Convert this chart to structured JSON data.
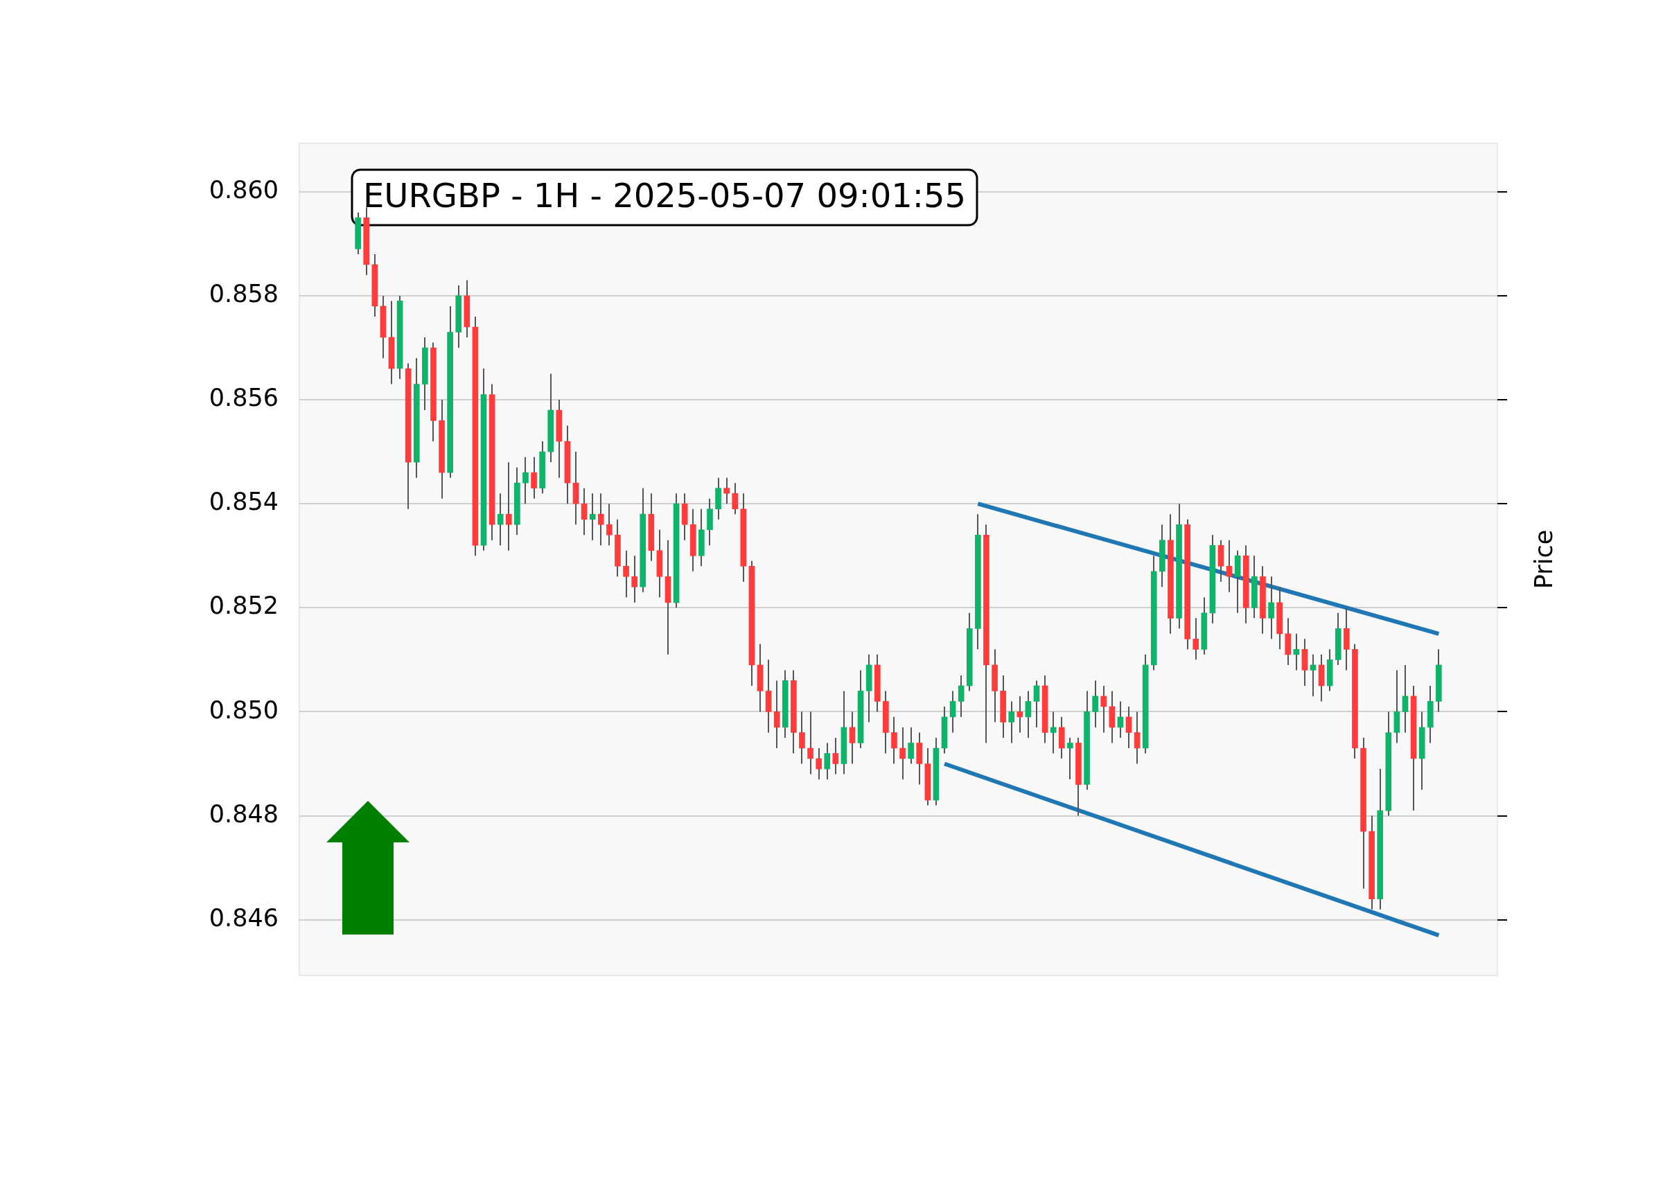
{
  "chart_data": {
    "type": "candlestick",
    "title": "EURGBP - 1H - 2025-05-07 09:01:55",
    "ylabel": "Price",
    "categories": [
      null,
      null,
      null,
      null,
      null,
      null,
      null,
      null,
      null,
      null,
      null,
      null,
      null,
      null,
      null,
      null,
      null,
      null,
      null,
      null,
      null,
      null,
      null,
      null,
      null,
      null,
      null,
      null,
      null,
      null,
      null,
      null,
      null,
      null,
      null,
      null,
      null,
      null,
      null,
      null,
      null,
      null,
      null,
      null,
      null,
      null,
      null,
      null,
      null,
      null,
      null,
      null,
      null,
      null,
      null,
      null,
      null,
      null,
      null,
      null,
      null,
      null,
      null,
      null,
      null,
      null,
      null,
      null,
      null,
      null,
      null,
      null,
      null,
      null,
      null,
      null,
      null,
      null,
      null,
      null,
      null,
      null,
      null,
      null,
      null,
      null,
      null,
      null,
      null,
      null,
      null,
      null,
      null,
      null,
      null,
      null,
      null,
      null,
      null,
      null,
      null,
      null,
      null,
      null,
      null,
      null,
      null,
      null,
      null,
      null,
      null,
      null,
      null,
      null,
      null,
      null,
      null,
      null,
      null,
      null,
      null,
      null,
      null,
      null,
      null,
      null,
      null,
      null,
      null,
      null
    ],
    "ohlc": [
      [
        0.8589,
        0.8596,
        0.8588,
        0.8595
      ],
      [
        0.8595,
        0.8597,
        0.8584,
        0.8586
      ],
      [
        0.8586,
        0.8588,
        0.8576,
        0.8578
      ],
      [
        0.8578,
        0.858,
        0.8568,
        0.8572
      ],
      [
        0.8572,
        0.8579,
        0.8563,
        0.8566
      ],
      [
        0.8566,
        0.858,
        0.8564,
        0.8579
      ],
      [
        0.8566,
        0.8567,
        0.8539,
        0.8548
      ],
      [
        0.8548,
        0.8568,
        0.8545,
        0.8563
      ],
      [
        0.8563,
        0.8572,
        0.8558,
        0.857
      ],
      [
        0.857,
        0.8571,
        0.8552,
        0.8556
      ],
      [
        0.8556,
        0.856,
        0.8541,
        0.8546
      ],
      [
        0.8546,
        0.8578,
        0.8545,
        0.8573
      ],
      [
        0.8573,
        0.8582,
        0.857,
        0.858
      ],
      [
        0.858,
        0.8583,
        0.8572,
        0.8574
      ],
      [
        0.8574,
        0.8576,
        0.853,
        0.8532
      ],
      [
        0.8532,
        0.8566,
        0.8531,
        0.8561
      ],
      [
        0.8561,
        0.8563,
        0.8533,
        0.8536
      ],
      [
        0.8536,
        0.8542,
        0.8532,
        0.8538
      ],
      [
        0.8538,
        0.8548,
        0.8531,
        0.8536
      ],
      [
        0.8536,
        0.8547,
        0.8534,
        0.8544
      ],
      [
        0.8544,
        0.8549,
        0.854,
        0.8546
      ],
      [
        0.8546,
        0.8549,
        0.8541,
        0.8543
      ],
      [
        0.8543,
        0.8552,
        0.8542,
        0.855
      ],
      [
        0.855,
        0.8565,
        0.8548,
        0.8558
      ],
      [
        0.8558,
        0.856,
        0.8545,
        0.8552
      ],
      [
        0.8552,
        0.8555,
        0.854,
        0.8544
      ],
      [
        0.8544,
        0.855,
        0.8536,
        0.854
      ],
      [
        0.854,
        0.8543,
        0.8534,
        0.8537
      ],
      [
        0.8537,
        0.8542,
        0.8533,
        0.8538
      ],
      [
        0.8538,
        0.8542,
        0.8532,
        0.8536
      ],
      [
        0.8536,
        0.854,
        0.8532,
        0.8534
      ],
      [
        0.8534,
        0.8537,
        0.8526,
        0.8528
      ],
      [
        0.8528,
        0.8531,
        0.8522,
        0.8526
      ],
      [
        0.8526,
        0.853,
        0.8521,
        0.8524
      ],
      [
        0.8524,
        0.8543,
        0.8523,
        0.8538
      ],
      [
        0.8538,
        0.8542,
        0.8529,
        0.8531
      ],
      [
        0.8531,
        0.8535,
        0.8522,
        0.8526
      ],
      [
        0.8526,
        0.8533,
        0.8511,
        0.8521
      ],
      [
        0.8521,
        0.8542,
        0.852,
        0.854
      ],
      [
        0.854,
        0.8542,
        0.8533,
        0.8536
      ],
      [
        0.8536,
        0.8539,
        0.8527,
        0.853
      ],
      [
        0.853,
        0.8539,
        0.8528,
        0.8535
      ],
      [
        0.8535,
        0.8541,
        0.8532,
        0.8539
      ],
      [
        0.8539,
        0.8545,
        0.8537,
        0.8543
      ],
      [
        0.8543,
        0.8545,
        0.854,
        0.8542
      ],
      [
        0.8542,
        0.8544,
        0.8538,
        0.8539
      ],
      [
        0.8539,
        0.8542,
        0.8525,
        0.8528
      ],
      [
        0.8528,
        0.8529,
        0.8505,
        0.8509
      ],
      [
        0.8509,
        0.8513,
        0.85,
        0.8504
      ],
      [
        0.8504,
        0.851,
        0.8496,
        0.85
      ],
      [
        0.85,
        0.8506,
        0.8493,
        0.8497
      ],
      [
        0.8497,
        0.8508,
        0.8495,
        0.8506
      ],
      [
        0.8506,
        0.8508,
        0.8492,
        0.8496
      ],
      [
        0.8496,
        0.85,
        0.849,
        0.8493
      ],
      [
        0.8493,
        0.85,
        0.8488,
        0.8491
      ],
      [
        0.8491,
        0.8493,
        0.8487,
        0.8489
      ],
      [
        0.8489,
        0.8494,
        0.8487,
        0.8492
      ],
      [
        0.8492,
        0.8495,
        0.8488,
        0.849
      ],
      [
        0.849,
        0.8504,
        0.8488,
        0.8497
      ],
      [
        0.8497,
        0.85,
        0.849,
        0.8494
      ],
      [
        0.8494,
        0.8508,
        0.8493,
        0.8504
      ],
      [
        0.8504,
        0.8511,
        0.8498,
        0.8509
      ],
      [
        0.8509,
        0.8511,
        0.85,
        0.8502
      ],
      [
        0.8502,
        0.8504,
        0.8492,
        0.8496
      ],
      [
        0.8496,
        0.8499,
        0.849,
        0.8493
      ],
      [
        0.8493,
        0.8497,
        0.8487,
        0.8491
      ],
      [
        0.8491,
        0.8497,
        0.849,
        0.8494
      ],
      [
        0.8494,
        0.8496,
        0.8486,
        0.849
      ],
      [
        0.849,
        0.8493,
        0.8482,
        0.8483
      ],
      [
        0.8483,
        0.8495,
        0.8482,
        0.8493
      ],
      [
        0.8493,
        0.8501,
        0.8492,
        0.8499
      ],
      [
        0.8499,
        0.8504,
        0.8496,
        0.8502
      ],
      [
        0.8502,
        0.8507,
        0.8499,
        0.8505
      ],
      [
        0.8505,
        0.8519,
        0.8504,
        0.8516
      ],
      [
        0.8516,
        0.8538,
        0.8512,
        0.8534
      ],
      [
        0.8534,
        0.8536,
        0.8494,
        0.8509
      ],
      [
        0.8509,
        0.8512,
        0.8498,
        0.8504
      ],
      [
        0.8504,
        0.8507,
        0.8495,
        0.8498
      ],
      [
        0.8498,
        0.8502,
        0.8494,
        0.85
      ],
      [
        0.85,
        0.8503,
        0.8496,
        0.8499
      ],
      [
        0.8499,
        0.8504,
        0.8495,
        0.8502
      ],
      [
        0.8502,
        0.8506,
        0.8497,
        0.8505
      ],
      [
        0.8505,
        0.8507,
        0.8494,
        0.8496
      ],
      [
        0.8496,
        0.85,
        0.8492,
        0.8497
      ],
      [
        0.8497,
        0.8499,
        0.8491,
        0.8493
      ],
      [
        0.8493,
        0.8495,
        0.8487,
        0.8494
      ],
      [
        0.8494,
        0.8495,
        0.848,
        0.8486
      ],
      [
        0.8486,
        0.8504,
        0.8485,
        0.85
      ],
      [
        0.85,
        0.8506,
        0.8497,
        0.8503
      ],
      [
        0.8503,
        0.8505,
        0.8496,
        0.8501
      ],
      [
        0.8501,
        0.8504,
        0.8494,
        0.8497
      ],
      [
        0.8497,
        0.8502,
        0.8495,
        0.8499
      ],
      [
        0.8499,
        0.8501,
        0.8493,
        0.8496
      ],
      [
        0.8496,
        0.85,
        0.849,
        0.8493
      ],
      [
        0.8493,
        0.8511,
        0.8492,
        0.8509
      ],
      [
        0.8509,
        0.853,
        0.8508,
        0.8527
      ],
      [
        0.8527,
        0.8536,
        0.8524,
        0.8533
      ],
      [
        0.8533,
        0.8538,
        0.8515,
        0.8518
      ],
      [
        0.8518,
        0.854,
        0.8516,
        0.8536
      ],
      [
        0.8536,
        0.8537,
        0.8512,
        0.8514
      ],
      [
        0.8514,
        0.8518,
        0.851,
        0.8512
      ],
      [
        0.8512,
        0.8522,
        0.8511,
        0.8519
      ],
      [
        0.8519,
        0.8534,
        0.8517,
        0.8532
      ],
      [
        0.8532,
        0.8533,
        0.8525,
        0.8528
      ],
      [
        0.8528,
        0.8533,
        0.8523,
        0.8526
      ],
      [
        0.8526,
        0.8531,
        0.8519,
        0.853
      ],
      [
        0.853,
        0.8532,
        0.8517,
        0.852
      ],
      [
        0.852,
        0.853,
        0.8518,
        0.8526
      ],
      [
        0.8526,
        0.8528,
        0.8515,
        0.8518
      ],
      [
        0.8518,
        0.8526,
        0.8514,
        0.8521
      ],
      [
        0.8521,
        0.8524,
        0.8512,
        0.8515
      ],
      [
        0.8515,
        0.8518,
        0.8509,
        0.8511
      ],
      [
        0.8511,
        0.8515,
        0.8508,
        0.8512
      ],
      [
        0.8512,
        0.8514,
        0.8505,
        0.8508
      ],
      [
        0.8508,
        0.8511,
        0.8503,
        0.8509
      ],
      [
        0.8509,
        0.8511,
        0.8502,
        0.8505
      ],
      [
        0.8505,
        0.8512,
        0.8504,
        0.851
      ],
      [
        0.851,
        0.8519,
        0.8509,
        0.8516
      ],
      [
        0.8516,
        0.852,
        0.8508,
        0.8512
      ],
      [
        0.8512,
        0.8513,
        0.8491,
        0.8493
      ],
      [
        0.8493,
        0.8495,
        0.8466,
        0.8477
      ],
      [
        0.8477,
        0.848,
        0.8462,
        0.8464
      ],
      [
        0.8464,
        0.8489,
        0.8462,
        0.8481
      ],
      [
        0.8481,
        0.85,
        0.848,
        0.8496
      ],
      [
        0.8496,
        0.8508,
        0.8494,
        0.85
      ],
      [
        0.85,
        0.8509,
        0.8496,
        0.8503
      ],
      [
        0.8503,
        0.8505,
        0.8481,
        0.8491
      ],
      [
        0.8491,
        0.85,
        0.8485,
        0.8497
      ],
      [
        0.8497,
        0.8505,
        0.8494,
        0.8502
      ],
      [
        0.8502,
        0.8512,
        0.85,
        0.8509
      ]
    ],
    "colors": [
      "#0fb36a",
      "#ff3b3b",
      "#ff3b3b",
      "#ff3b3b",
      "#ff3b3b",
      "#0fb36a",
      "#ff3b3b",
      "#0fb36a",
      "#0fb36a",
      "#ff3b3b",
      "#ff3b3b",
      "#0fb36a",
      "#0fb36a",
      "#ff3b3b",
      "#ff3b3b",
      "#0fb36a",
      "#ff3b3b",
      "#0fb36a",
      "#ff3b3b",
      "#0fb36a",
      "#0fb36a",
      "#ff3b3b",
      "#0fb36a",
      "#0fb36a",
      "#ff3b3b",
      "#ff3b3b",
      "#ff3b3b",
      "#ff3b3b",
      "#0fb36a",
      "#ff3b3b",
      "#ff3b3b",
      "#ff3b3b",
      "#ff3b3b",
      "#ff3b3b",
      "#0fb36a",
      "#ff3b3b",
      "#ff3b3b",
      "#ff3b3b",
      "#0fb36a",
      "#ff3b3b",
      "#ff3b3b",
      "#0fb36a",
      "#0fb36a",
      "#0fb36a",
      "#ff3b3b",
      "#ff3b3b",
      "#ff3b3b",
      "#ff3b3b",
      "#ff3b3b",
      "#ff3b3b",
      "#ff3b3b",
      "#0fb36a",
      "#ff3b3b",
      "#ff3b3b",
      "#ff3b3b",
      "#ff3b3b",
      "#0fb36a",
      "#ff3b3b",
      "#0fb36a",
      "#ff3b3b",
      "#0fb36a",
      "#0fb36a",
      "#ff3b3b",
      "#ff3b3b",
      "#ff3b3b",
      "#ff3b3b",
      "#0fb36a",
      "#ff3b3b",
      "#ff3b3b",
      "#0fb36a",
      "#0fb36a",
      "#0fb36a",
      "#0fb36a",
      "#0fb36a",
      "#0fb36a",
      "#ff3b3b",
      "#ff3b3b",
      "#ff3b3b",
      "#0fb36a",
      "#ff3b3b",
      "#0fb36a",
      "#0fb36a",
      "#ff3b3b",
      "#0fb36a",
      "#ff3b3b",
      "#0fb36a",
      "#ff3b3b",
      "#0fb36a",
      "#0fb36a",
      "#ff3b3b",
      "#ff3b3b",
      "#0fb36a",
      "#ff3b3b",
      "#ff3b3b",
      "#0fb36a",
      "#0fb36a",
      "#0fb36a",
      "#ff3b3b",
      "#0fb36a",
      "#ff3b3b",
      "#ff3b3b",
      "#0fb36a",
      "#0fb36a",
      "#ff3b3b",
      "#ff3b3b",
      "#0fb36a",
      "#ff3b3b",
      "#0fb36a",
      "#ff3b3b",
      "#0fb36a",
      "#ff3b3b",
      "#ff3b3b",
      "#0fb36a",
      "#ff3b3b",
      "#0fb36a",
      "#ff3b3b",
      "#0fb36a",
      "#0fb36a",
      "#ff3b3b",
      "#ff3b3b",
      "#ff3b3b",
      "#ff3b3b",
      "#0fb36a",
      "#0fb36a",
      "#0fb36a",
      "#0fb36a",
      "#ff3b3b",
      "#0fb36a",
      "#0fb36a",
      "#0fb36a"
    ],
    "series": [
      {
        "type": "line",
        "color": "#1f77b4",
        "values": [
          null,
          null,
          null,
          null,
          null,
          null,
          null,
          null,
          null,
          null,
          null,
          null,
          null,
          null,
          null,
          null,
          null,
          null,
          null,
          null,
          null,
          null,
          null,
          null,
          null,
          null,
          null,
          null,
          null,
          null,
          null,
          null,
          null,
          null,
          null,
          null,
          null,
          null,
          null,
          null,
          null,
          null,
          null,
          null,
          null,
          null,
          null,
          null,
          null,
          null,
          null,
          null,
          null,
          null,
          null,
          null,
          null,
          null,
          null,
          null,
          null,
          null,
          null,
          null,
          null,
          null,
          null,
          null,
          null,
          null,
          null,
          null,
          null,
          null,
          0.854,
          null,
          null,
          null,
          null,
          null,
          null,
          null,
          null,
          null,
          null,
          null,
          null,
          null,
          null,
          null,
          null,
          null,
          null,
          null,
          null,
          null,
          null,
          null,
          null,
          null,
          null,
          null,
          null,
          null,
          null,
          null,
          null,
          null,
          null,
          null,
          null,
          null,
          null,
          null,
          null,
          null,
          null,
          null,
          null,
          null,
          null,
          null,
          null,
          null,
          null,
          null,
          null,
          null,
          null,
          0.8515
        ]
      },
      {
        "type": "line",
        "color": "#1f77b4",
        "values": [
          null,
          null,
          null,
          null,
          null,
          null,
          null,
          null,
          null,
          null,
          null,
          null,
          null,
          null,
          null,
          null,
          null,
          null,
          null,
          null,
          null,
          null,
          null,
          null,
          null,
          null,
          null,
          null,
          null,
          null,
          null,
          null,
          null,
          null,
          null,
          null,
          null,
          null,
          null,
          null,
          null,
          null,
          null,
          null,
          null,
          null,
          null,
          null,
          null,
          null,
          null,
          null,
          null,
          null,
          null,
          null,
          null,
          null,
          null,
          null,
          null,
          null,
          null,
          null,
          null,
          null,
          null,
          null,
          null,
          null,
          0.849,
          null,
          null,
          null,
          null,
          null,
          null,
          null,
          null,
          null,
          null,
          null,
          null,
          null,
          null,
          null,
          null,
          null,
          null,
          null,
          null,
          null,
          null,
          null,
          null,
          null,
          null,
          null,
          null,
          null,
          null,
          null,
          null,
          null,
          null,
          null,
          null,
          null,
          null,
          null,
          null,
          null,
          null,
          null,
          null,
          null,
          null,
          null,
          null,
          null,
          null,
          null,
          null,
          null,
          null,
          null,
          null,
          null,
          null,
          0.8457
        ]
      }
    ],
    "ylim": [
      0.84493,
      0.86093
    ],
    "yticks": [
      {
        "value": 0.846,
        "label": "0.846"
      },
      {
        "value": 0.848,
        "label": "0.848"
      },
      {
        "value": 0.85,
        "label": "0.850"
      },
      {
        "value": 0.852,
        "label": "0.852"
      },
      {
        "value": 0.854,
        "label": "0.854"
      },
      {
        "value": 0.856,
        "label": "0.856"
      },
      {
        "value": 0.858,
        "label": "0.858"
      },
      {
        "value": 0.86,
        "label": "0.860"
      }
    ],
    "grid": "y",
    "tick_labels": "y"
  }
}
